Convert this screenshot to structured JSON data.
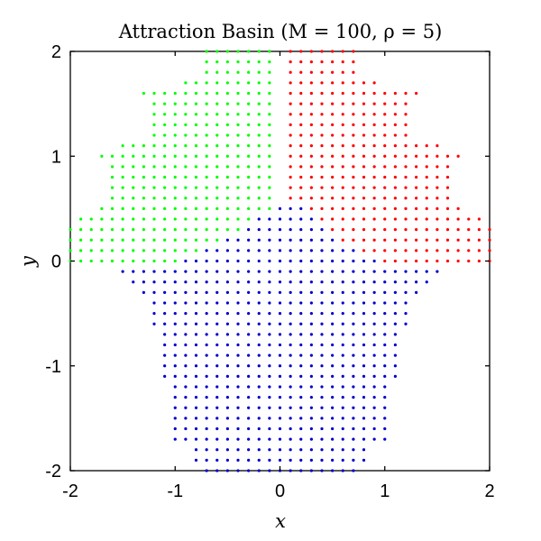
{
  "chart_data": {
    "type": "scatter",
    "title": "Attraction Basin (M = 100, ρ = 5)",
    "xlabel": "x",
    "ylabel": "y",
    "xlim": [
      -2,
      2
    ],
    "ylim": [
      -2,
      2
    ],
    "xticks": [
      -2,
      -1,
      0,
      1,
      2
    ],
    "yticks": [
      -2,
      -1,
      0,
      1,
      2
    ],
    "xtick_labels": [
      "-2",
      "-1",
      "0",
      "1",
      "2"
    ],
    "ytick_labels": [
      "-2",
      "-1",
      "0",
      "1",
      "2"
    ],
    "grid": false,
    "grid_step": 0.1,
    "colors": {
      "green": "#00ff00",
      "red": "#ff0000",
      "blue": "#0000cc"
    },
    "series": [
      {
        "color": "green",
        "rows": [
          {
            "y": 2.0,
            "xmin": -0.7,
            "xmax": -0.1
          },
          {
            "y": 1.9,
            "xmin": -0.7,
            "xmax": -0.1
          },
          {
            "y": 1.8,
            "xmin": -0.7,
            "xmax": -0.1
          },
          {
            "y": 1.7,
            "xmin": -0.9,
            "xmax": -0.1
          },
          {
            "y": 1.6,
            "xmin": -1.3,
            "xmax": -0.1
          },
          {
            "y": 1.5,
            "xmin": -1.2,
            "xmax": -0.1
          },
          {
            "y": 1.4,
            "xmin": -1.2,
            "xmax": -0.1
          },
          {
            "y": 1.3,
            "xmin": -1.2,
            "xmax": -0.1
          },
          {
            "y": 1.2,
            "xmin": -1.2,
            "xmax": -0.1
          },
          {
            "y": 1.1,
            "xmin": -1.5,
            "xmax": -0.1
          },
          {
            "y": 1.0,
            "xmin": -1.7,
            "xmax": -0.1
          },
          {
            "y": 0.9,
            "xmin": -1.6,
            "xmax": -0.1
          },
          {
            "y": 0.8,
            "xmin": -1.6,
            "xmax": -0.1
          },
          {
            "y": 0.7,
            "xmin": -1.6,
            "xmax": -0.1
          },
          {
            "y": 0.6,
            "xmin": -1.6,
            "xmax": -0.1
          },
          {
            "y": 0.5,
            "xmin": -1.7,
            "xmax": -0.1
          },
          {
            "y": 0.4,
            "xmin": -1.9,
            "xmax": -0.3
          },
          {
            "y": 0.3,
            "xmin": -2.0,
            "xmax": -0.4
          },
          {
            "y": 0.2,
            "xmin": -2.0,
            "xmax": -0.6
          },
          {
            "y": 0.1,
            "xmin": -2.0,
            "xmax": -0.8
          },
          {
            "y": 0.0,
            "xmin": -2.0,
            "xmax": -1.0
          }
        ]
      },
      {
        "color": "red",
        "rows": [
          {
            "y": 2.0,
            "xmin": 0.1,
            "xmax": 0.7
          },
          {
            "y": 1.9,
            "xmin": 0.1,
            "xmax": 0.7
          },
          {
            "y": 1.8,
            "xmin": 0.1,
            "xmax": 0.7
          },
          {
            "y": 1.7,
            "xmin": 0.1,
            "xmax": 0.9
          },
          {
            "y": 1.6,
            "xmin": 0.1,
            "xmax": 1.3
          },
          {
            "y": 1.5,
            "xmin": 0.1,
            "xmax": 1.2
          },
          {
            "y": 1.4,
            "xmin": 0.1,
            "xmax": 1.2
          },
          {
            "y": 1.3,
            "xmin": 0.1,
            "xmax": 1.2
          },
          {
            "y": 1.2,
            "xmin": 0.1,
            "xmax": 1.2
          },
          {
            "y": 1.1,
            "xmin": 0.1,
            "xmax": 1.5
          },
          {
            "y": 1.0,
            "xmin": 0.1,
            "xmax": 1.7
          },
          {
            "y": 0.9,
            "xmin": 0.1,
            "xmax": 1.6
          },
          {
            "y": 0.8,
            "xmin": 0.1,
            "xmax": 1.6
          },
          {
            "y": 0.7,
            "xmin": 0.1,
            "xmax": 1.6
          },
          {
            "y": 0.6,
            "xmin": 0.1,
            "xmax": 1.6
          },
          {
            "y": 0.5,
            "xmin": 0.3,
            "xmax": 1.7
          },
          {
            "y": 0.4,
            "xmin": 0.4,
            "xmax": 1.9
          },
          {
            "y": 0.3,
            "xmin": 0.5,
            "xmax": 2.0
          },
          {
            "y": 0.2,
            "xmin": 0.6,
            "xmax": 2.0
          },
          {
            "y": 0.1,
            "xmin": 0.8,
            "xmax": 2.0
          },
          {
            "y": 0.0,
            "xmin": 1.0,
            "xmax": 2.0
          }
        ]
      },
      {
        "color": "blue",
        "rows": [
          {
            "y": 0.5,
            "xmin": 0.0,
            "xmax": 0.2
          },
          {
            "y": 0.4,
            "xmin": -0.2,
            "xmax": 0.3
          },
          {
            "y": 0.3,
            "xmin": -0.3,
            "xmax": 0.4
          },
          {
            "y": 0.2,
            "xmin": -0.5,
            "xmax": 0.5
          },
          {
            "y": 0.1,
            "xmin": -0.7,
            "xmax": 0.7
          },
          {
            "y": 0.0,
            "xmin": -0.9,
            "xmax": 0.9
          },
          {
            "y": -0.1,
            "xmin": -1.5,
            "xmax": 1.5
          },
          {
            "y": -0.2,
            "xmin": -1.4,
            "xmax": 1.4
          },
          {
            "y": -0.3,
            "xmin": -1.3,
            "xmax": 1.3
          },
          {
            "y": -0.4,
            "xmin": -1.2,
            "xmax": 1.2
          },
          {
            "y": -0.5,
            "xmin": -1.2,
            "xmax": 1.2
          },
          {
            "y": -0.6,
            "xmin": -1.2,
            "xmax": 1.2
          },
          {
            "y": -0.7,
            "xmin": -1.1,
            "xmax": 1.1
          },
          {
            "y": -0.8,
            "xmin": -1.1,
            "xmax": 1.1
          },
          {
            "y": -0.9,
            "xmin": -1.1,
            "xmax": 1.1
          },
          {
            "y": -1.0,
            "xmin": -1.1,
            "xmax": 1.1
          },
          {
            "y": -1.1,
            "xmin": -1.1,
            "xmax": 1.1
          },
          {
            "y": -1.2,
            "xmin": -1.0,
            "xmax": 1.0
          },
          {
            "y": -1.3,
            "xmin": -1.0,
            "xmax": 1.0
          },
          {
            "y": -1.4,
            "xmin": -1.0,
            "xmax": 1.0
          },
          {
            "y": -1.5,
            "xmin": -1.0,
            "xmax": 1.0
          },
          {
            "y": -1.6,
            "xmin": -1.0,
            "xmax": 1.0
          },
          {
            "y": -1.7,
            "xmin": -1.0,
            "xmax": 1.0
          },
          {
            "y": -1.8,
            "xmin": -0.8,
            "xmax": 0.8
          },
          {
            "y": -1.9,
            "xmin": -0.8,
            "xmax": 0.8
          },
          {
            "y": -2.0,
            "xmin": -0.7,
            "xmax": 0.7
          }
        ]
      }
    ]
  }
}
